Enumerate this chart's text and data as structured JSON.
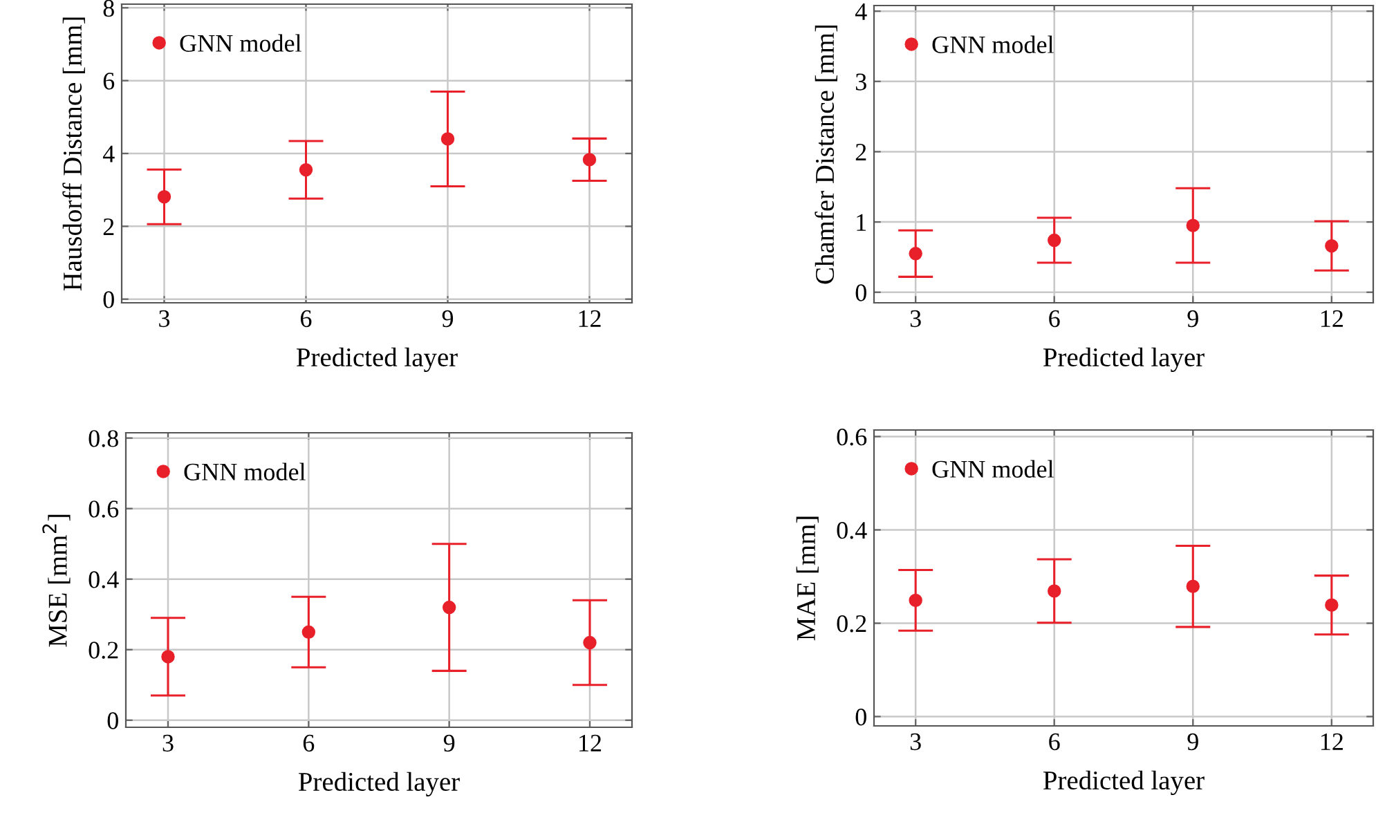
{
  "chart_data": [
    {
      "type": "scatter",
      "xlabel": "Predicted layer",
      "ylabel": "Hausdorff Distance [mm]",
      "x": [
        3,
        6,
        9,
        12
      ],
      "xlim": [
        2.1,
        12.9
      ],
      "xticks": [
        3,
        6,
        9,
        12
      ],
      "ylim": [
        -0.1,
        8.1
      ],
      "yticks": [
        0,
        2,
        4,
        6,
        8
      ],
      "grid": true,
      "legend": "top left",
      "marker": "circle",
      "series": [
        {
          "name": "GNN model",
          "color": "#e8202a",
          "values": [
            2.81,
            3.55,
            4.4,
            3.83
          ],
          "errors": [
            0.75,
            0.79,
            1.3,
            0.58
          ]
        }
      ]
    },
    {
      "type": "scatter",
      "xlabel": "Predicted layer",
      "ylabel": "Chamfer Distance [mm]",
      "x": [
        3,
        6,
        9,
        12
      ],
      "xlim": [
        2.1,
        12.9
      ],
      "xticks": [
        3,
        6,
        9,
        12
      ],
      "ylim": [
        -0.15,
        4.08
      ],
      "yticks": [
        0,
        1,
        2,
        3,
        4
      ],
      "grid": true,
      "legend": "top left",
      "marker": "circle",
      "series": [
        {
          "name": "GNN model",
          "color": "#e8202a",
          "values": [
            0.55,
            0.74,
            0.95,
            0.66
          ],
          "errors": [
            0.33,
            0.32,
            0.53,
            0.35
          ]
        }
      ]
    },
    {
      "type": "scatter",
      "xlabel": "Predicted layer",
      "ylabel": "MSE [mm$^{2}$]",
      "x": [
        3,
        6,
        9,
        12
      ],
      "xlim": [
        2.1,
        12.9
      ],
      "xticks": [
        3,
        6,
        9,
        12
      ],
      "ylim": [
        -0.02,
        0.815
      ],
      "yticks": [
        0,
        0.2,
        0.4,
        0.6,
        0.8
      ],
      "grid": true,
      "legend": "top left",
      "marker": "circle",
      "series": [
        {
          "name": "GNN model",
          "color": "#e8202a",
          "values": [
            0.18,
            0.25,
            0.32,
            0.22
          ],
          "errors": [
            0.11,
            0.1,
            0.18,
            0.12
          ]
        }
      ]
    },
    {
      "type": "scatter",
      "xlabel": "Predicted layer",
      "ylabel": "MAE [mm]",
      "x": [
        3,
        6,
        9,
        12
      ],
      "xlim": [
        2.1,
        12.9
      ],
      "xticks": [
        3,
        6,
        9,
        12
      ],
      "ylim": [
        -0.02,
        0.614
      ],
      "yticks": [
        0,
        0.2,
        0.4,
        0.6
      ],
      "grid": true,
      "legend": "top left",
      "marker": "circle",
      "series": [
        {
          "name": "GNN model",
          "color": "#e8202a",
          "values": [
            0.249,
            0.269,
            0.279,
            0.239
          ],
          "errors": [
            0.065,
            0.068,
            0.087,
            0.063
          ]
        }
      ]
    }
  ]
}
